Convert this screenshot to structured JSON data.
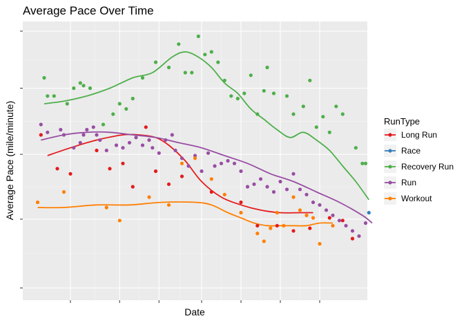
{
  "chart_data": {
    "type": "scatter",
    "title": "Average Pace Over Time",
    "xlabel": "Date",
    "ylabel": "Average Pace (mile/minute)",
    "x_range": [
      0,
      100
    ],
    "y_range": [
      0,
      100
    ],
    "x_tick_labels": [
      "",
      "",
      "",
      "",
      "",
      "",
      ""
    ],
    "y_tick_labels": [
      "",
      "",
      "",
      "",
      ""
    ],
    "x_tick_values": [
      12,
      27,
      39,
      52,
      64,
      76,
      88
    ],
    "y_tick_values": [
      1,
      27.5,
      52.5,
      78,
      100
    ],
    "grid": true,
    "legend": {
      "title": "RunType",
      "position": "right"
    },
    "series": [
      {
        "name": "Long Run",
        "color": "#E41A1C",
        "points": [
          [
            3,
            60
          ],
          [
            8,
            47
          ],
          [
            12,
            45
          ],
          [
            20,
            54
          ],
          [
            24,
            47
          ],
          [
            28,
            49
          ],
          [
            31,
            40
          ],
          [
            35,
            63
          ],
          [
            38,
            46
          ],
          [
            42,
            41
          ],
          [
            46,
            44
          ],
          [
            55,
            38
          ],
          [
            64,
            34
          ],
          [
            69,
            25
          ],
          [
            75,
            25
          ],
          [
            80,
            23
          ],
          [
            85,
            24
          ],
          [
            91,
            28
          ],
          [
            95,
            27
          ],
          [
            98,
            20
          ]
        ],
        "trend": [
          [
            5,
            52
          ],
          [
            12,
            55
          ],
          [
            20,
            58
          ],
          [
            28,
            60
          ],
          [
            33,
            60
          ],
          [
            38,
            59
          ],
          [
            42,
            56
          ],
          [
            47,
            50
          ],
          [
            52,
            42
          ],
          [
            58,
            36
          ],
          [
            64,
            33
          ],
          [
            70,
            31
          ],
          [
            76,
            30
          ],
          [
            82,
            30
          ],
          [
            86,
            30
          ]
        ]
      },
      {
        "name": "Race",
        "color": "#377EB8",
        "points": [
          [
            103,
            30
          ]
        ],
        "trend": []
      },
      {
        "name": "Recovery Run",
        "color": "#4DAF4A",
        "points": [
          [
            4,
            82
          ],
          [
            5,
            75
          ],
          [
            7,
            75
          ],
          [
            11,
            72
          ],
          [
            13,
            78
          ],
          [
            15,
            80
          ],
          [
            16,
            79
          ],
          [
            18,
            78
          ],
          [
            22,
            64
          ],
          [
            25,
            68
          ],
          [
            27,
            72
          ],
          [
            29,
            70
          ],
          [
            31,
            74
          ],
          [
            34,
            82
          ],
          [
            38,
            88
          ],
          [
            42,
            86
          ],
          [
            45,
            95
          ],
          [
            47,
            84
          ],
          [
            49,
            84
          ],
          [
            51,
            98
          ],
          [
            53,
            91
          ],
          [
            55,
            92
          ],
          [
            57,
            88
          ],
          [
            59,
            81
          ],
          [
            61,
            75
          ],
          [
            63,
            74
          ],
          [
            65,
            76
          ],
          [
            67,
            83
          ],
          [
            69,
            68
          ],
          [
            71,
            77
          ],
          [
            72,
            86
          ],
          [
            74,
            76
          ],
          [
            78,
            75
          ],
          [
            80,
            68
          ],
          [
            83,
            71
          ],
          [
            85,
            81
          ],
          [
            87,
            63
          ],
          [
            89,
            67
          ],
          [
            91,
            61
          ],
          [
            93,
            71
          ],
          [
            95,
            68
          ],
          [
            99,
            55
          ],
          [
            101,
            49
          ],
          [
            102,
            49
          ]
        ],
        "trend": [
          [
            4,
            72
          ],
          [
            10,
            73
          ],
          [
            17,
            75
          ],
          [
            24,
            78
          ],
          [
            31,
            82
          ],
          [
            37,
            84
          ],
          [
            43,
            90
          ],
          [
            47,
            92
          ],
          [
            51,
            90
          ],
          [
            55,
            86
          ],
          [
            59,
            80
          ],
          [
            63,
            76
          ],
          [
            67,
            70
          ],
          [
            71,
            66
          ],
          [
            75,
            62
          ],
          [
            79,
            59
          ],
          [
            83,
            61
          ],
          [
            87,
            58
          ],
          [
            91,
            54
          ],
          [
            95,
            48
          ],
          [
            99,
            42
          ],
          [
            103,
            35
          ]
        ]
      },
      {
        "name": "Run",
        "color": "#984EA3",
        "points": [
          [
            3,
            64
          ],
          [
            5,
            61
          ],
          [
            9,
            62
          ],
          [
            10,
            60
          ],
          [
            13,
            55
          ],
          [
            15,
            57
          ],
          [
            16,
            60
          ],
          [
            17,
            62
          ],
          [
            19,
            63
          ],
          [
            20,
            60
          ],
          [
            21,
            58
          ],
          [
            23,
            54
          ],
          [
            26,
            56
          ],
          [
            28,
            55
          ],
          [
            30,
            57
          ],
          [
            32,
            59
          ],
          [
            34,
            56
          ],
          [
            36,
            58
          ],
          [
            37,
            55
          ],
          [
            39,
            53
          ],
          [
            41,
            58
          ],
          [
            43,
            60
          ],
          [
            44,
            54
          ],
          [
            46,
            51
          ],
          [
            48,
            48
          ],
          [
            50,
            52
          ],
          [
            52,
            46
          ],
          [
            54,
            53
          ],
          [
            56,
            48
          ],
          [
            58,
            49
          ],
          [
            60,
            50
          ],
          [
            62,
            49
          ],
          [
            64,
            46
          ],
          [
            66,
            40
          ],
          [
            68,
            41
          ],
          [
            70,
            43
          ],
          [
            72,
            40
          ],
          [
            74,
            38
          ],
          [
            76,
            42
          ],
          [
            78,
            39
          ],
          [
            80,
            45
          ],
          [
            82,
            39
          ],
          [
            84,
            37
          ],
          [
            86,
            34
          ],
          [
            88,
            33
          ],
          [
            90,
            31
          ],
          [
            92,
            29
          ],
          [
            94,
            27
          ],
          [
            96,
            25
          ],
          [
            98,
            23
          ],
          [
            100,
            21
          ],
          [
            102,
            26
          ]
        ],
        "trend": [
          [
            3,
            58
          ],
          [
            10,
            60
          ],
          [
            17,
            61
          ],
          [
            24,
            61
          ],
          [
            31,
            60
          ],
          [
            38,
            59
          ],
          [
            45,
            57
          ],
          [
            52,
            55
          ],
          [
            59,
            52
          ],
          [
            66,
            49
          ],
          [
            73,
            45
          ],
          [
            80,
            42
          ],
          [
            87,
            38
          ],
          [
            94,
            34
          ],
          [
            101,
            29
          ],
          [
            104,
            26
          ]
        ]
      },
      {
        "name": "Workout",
        "color": "#FF7F00",
        "points": [
          [
            2,
            34
          ],
          [
            10,
            38
          ],
          [
            23,
            32
          ],
          [
            27,
            27
          ],
          [
            36,
            36
          ],
          [
            42,
            33
          ],
          [
            46,
            49
          ],
          [
            50,
            51
          ],
          [
            55,
            43
          ],
          [
            59,
            37
          ],
          [
            64,
            30
          ],
          [
            69,
            22
          ],
          [
            71,
            19
          ],
          [
            73,
            24
          ],
          [
            75,
            30
          ],
          [
            77,
            25
          ],
          [
            80,
            36
          ],
          [
            82,
            31
          ],
          [
            84,
            29
          ],
          [
            86,
            28
          ],
          [
            88,
            18
          ],
          [
            92,
            25
          ]
        ],
        "trend": [
          [
            2,
            32
          ],
          [
            10,
            32
          ],
          [
            20,
            33
          ],
          [
            30,
            33
          ],
          [
            40,
            34
          ],
          [
            50,
            34
          ],
          [
            55,
            33
          ],
          [
            60,
            30
          ],
          [
            64,
            28
          ],
          [
            68,
            26
          ],
          [
            72,
            25
          ],
          [
            76,
            25
          ],
          [
            80,
            25
          ],
          [
            84,
            25
          ],
          [
            88,
            26
          ],
          [
            92,
            26
          ]
        ]
      }
    ]
  }
}
